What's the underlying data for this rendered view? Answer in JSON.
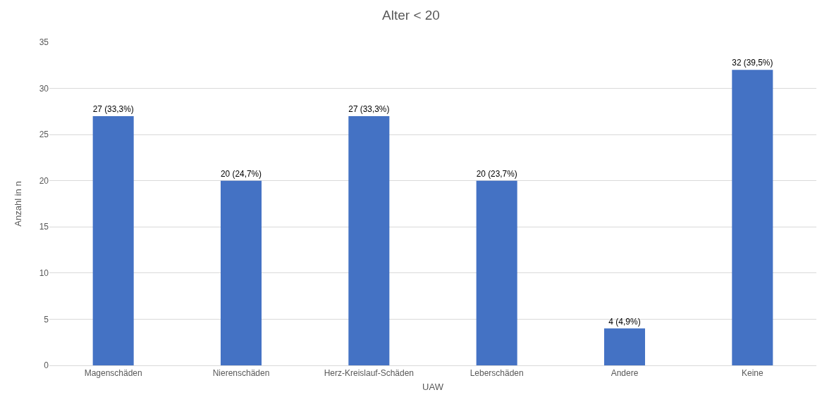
{
  "chart_data": {
    "type": "bar",
    "title": "Alter < 20",
    "xlabel": "UAW",
    "ylabel": "Anzahl in n",
    "categories": [
      "Magenschäden",
      "Nierenschäden",
      "Herz-Kreislauf-Schäden",
      "Leberschäden",
      "Andere",
      "Keine"
    ],
    "values": [
      27,
      20,
      27,
      20,
      4,
      32
    ],
    "value_labels": [
      "27 (33,3%)",
      "20 (24,7%)",
      "27 (33,3%)",
      "20 (23,7%)",
      "4 (4,9%)",
      "32 (39,5%)"
    ],
    "color": "#4472c4",
    "ylim": [
      0,
      35
    ],
    "yticks": [
      0,
      5,
      10,
      15,
      20,
      25,
      30,
      35
    ],
    "grid": "y"
  }
}
